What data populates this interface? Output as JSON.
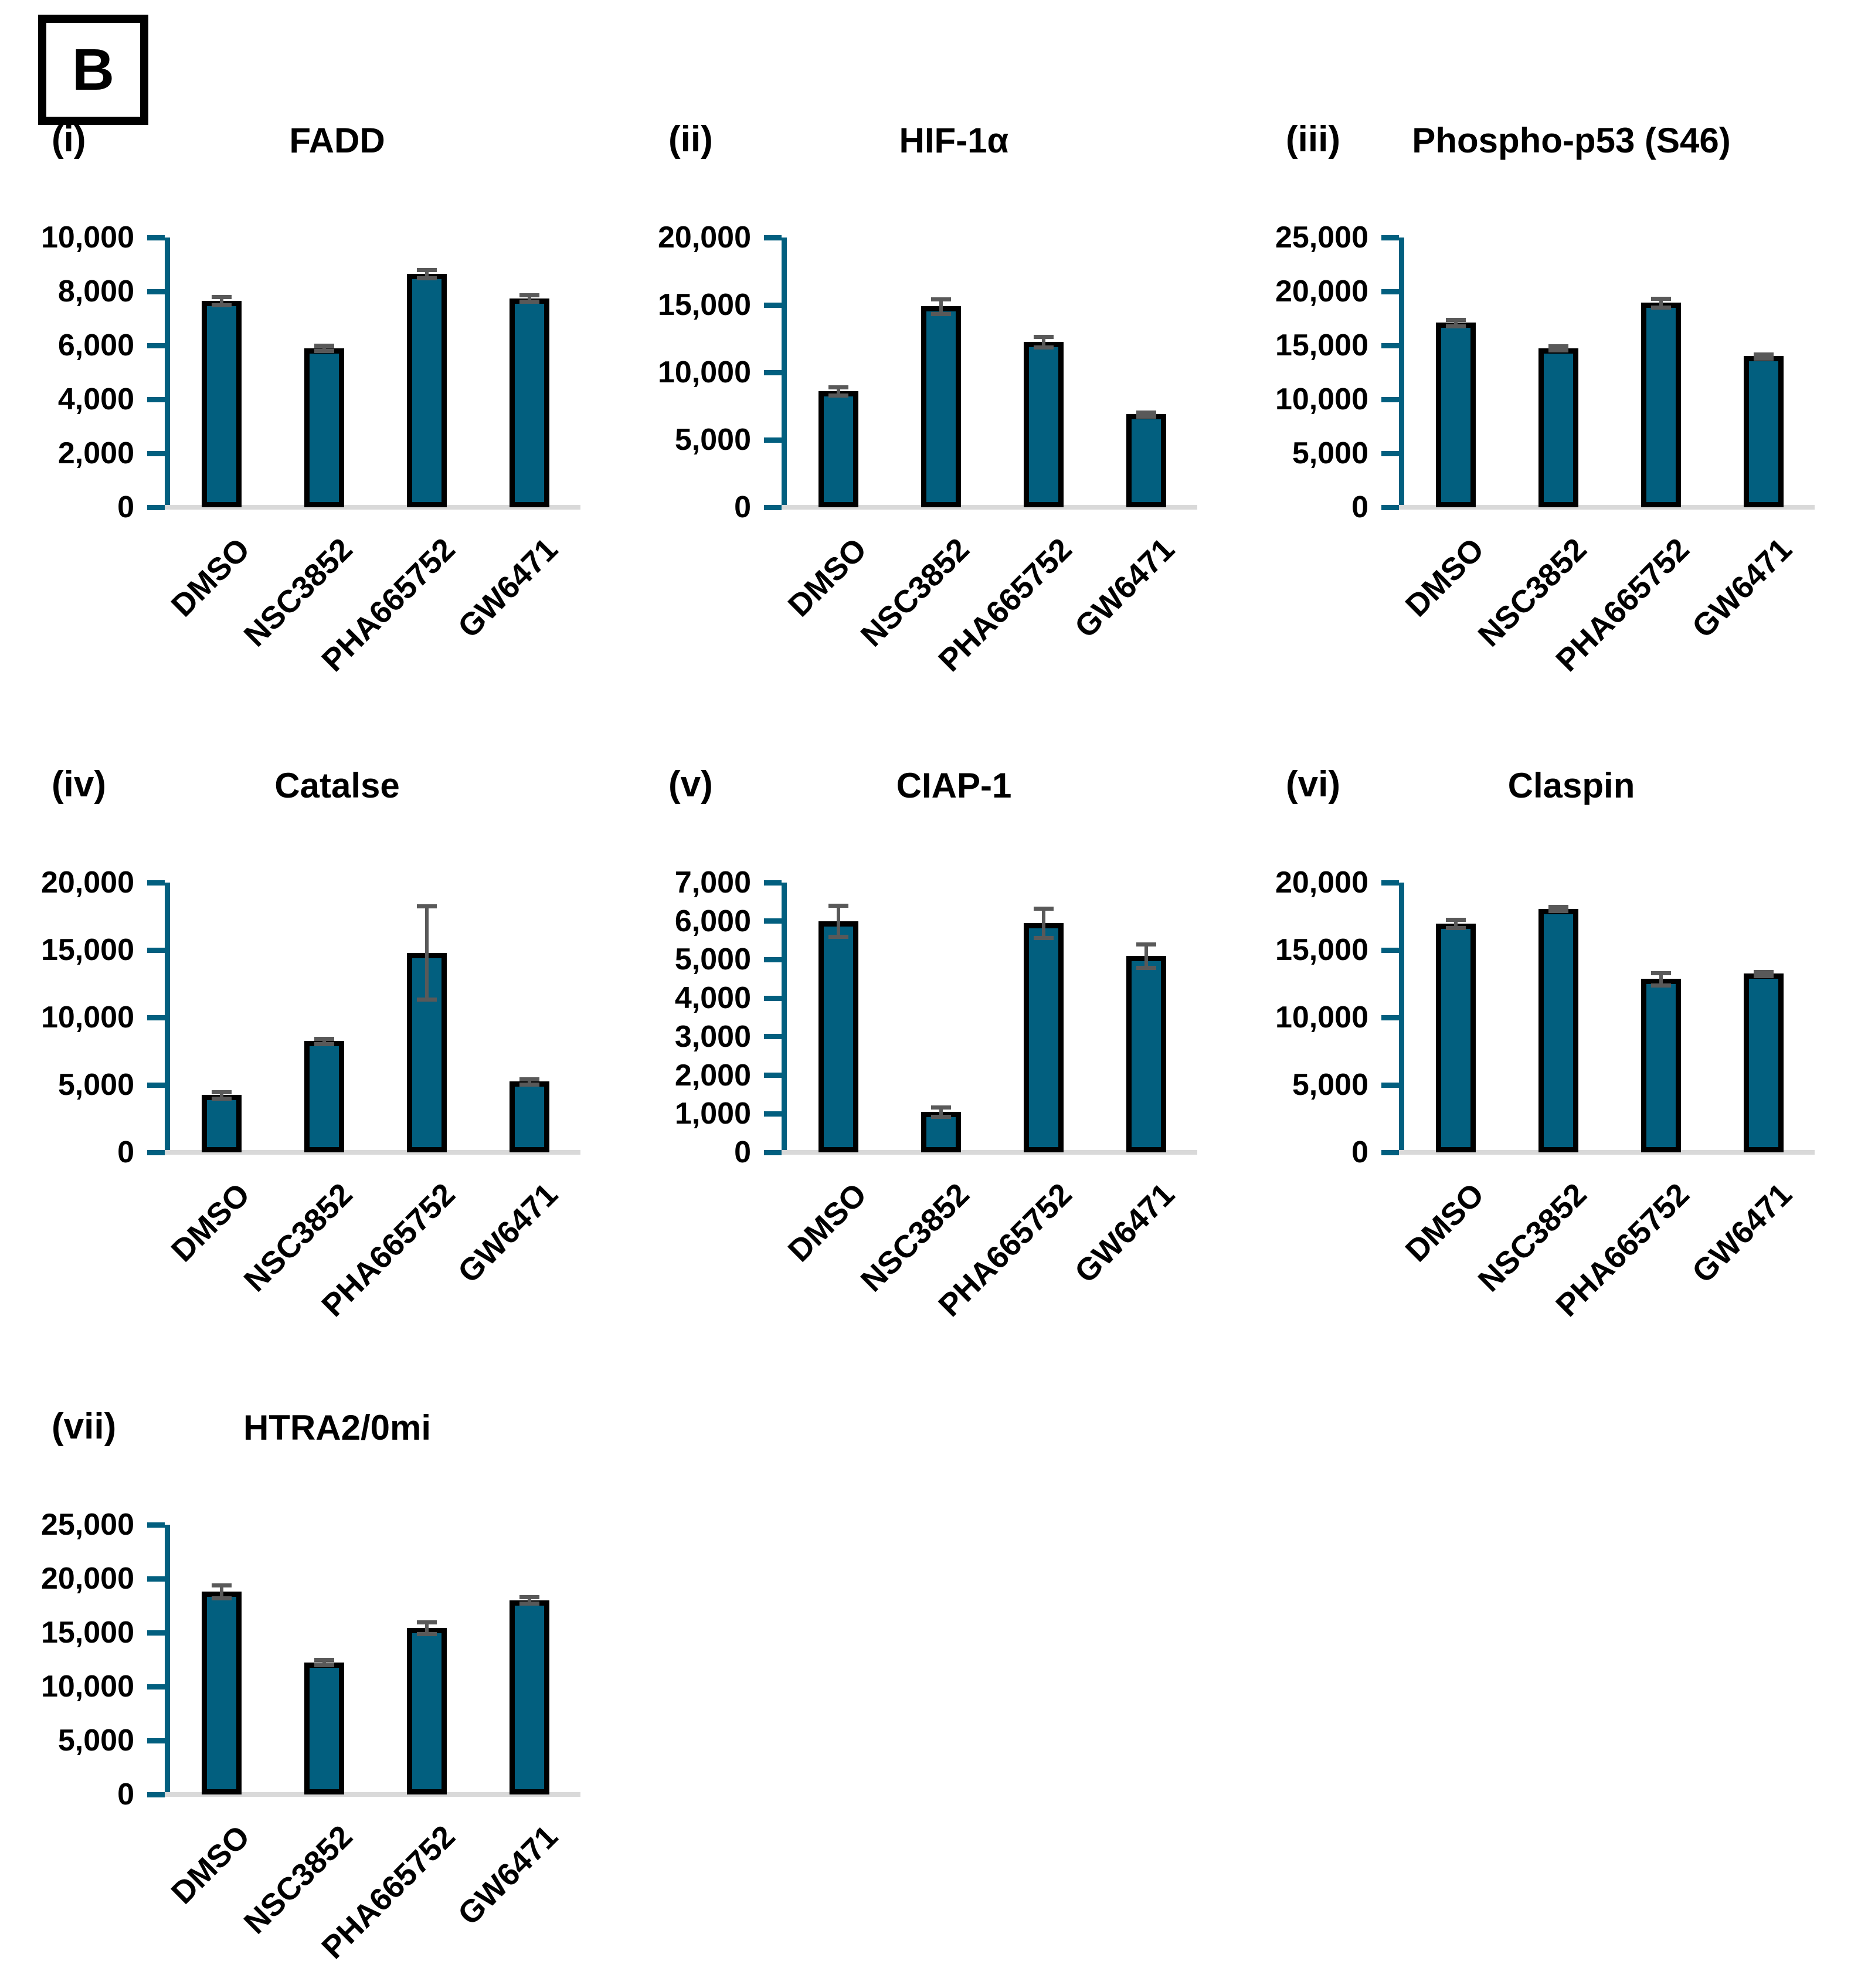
{
  "figure_label": "B",
  "categories": [
    "DMSO",
    "NSC3852",
    "PHA665752",
    "GW6471"
  ],
  "colors": {
    "bar_fill": "#025F7F",
    "bar_border": "#000000",
    "axis": "#025F7F",
    "error_bar": "#595959",
    "baseline": "#D9D9D9",
    "text": "#000000"
  },
  "chart_data": [
    {
      "type": "bar",
      "panel_label": "(i)",
      "title": "FADD",
      "categories": [
        "DMSO",
        "NSC3852",
        "PHA665752",
        "GW6471"
      ],
      "values": [
        7650,
        5900,
        8650,
        7750
      ],
      "errors": [
        150,
        100,
        150,
        120
      ],
      "ylim": [
        0,
        10000
      ],
      "ytick_step": 2000,
      "ytick_labels": [
        "0",
        "2,000",
        "4,000",
        "6,000",
        "8,000",
        "10,000"
      ],
      "grid": false,
      "legend": false
    },
    {
      "type": "bar",
      "panel_label": "(ii)",
      "title": "HIF-1α",
      "categories": [
        "DMSO",
        "NSC3852",
        "PHA665752",
        "GW6471"
      ],
      "values": [
        8600,
        14900,
        12250,
        6900
      ],
      "errors": [
        300,
        550,
        400,
        150
      ],
      "ylim": [
        0,
        20000
      ],
      "ytick_step": 5000,
      "ytick_labels": [
        "0",
        "5,000",
        "10,000",
        "15,000",
        "20,000"
      ],
      "grid": false,
      "legend": false
    },
    {
      "type": "bar",
      "panel_label": "(iii)",
      "title": "Phospho-p53 (S46)",
      "categories": [
        "DMSO",
        "NSC3852",
        "PHA665752",
        "GW6471"
      ],
      "values": [
        17100,
        14750,
        18950,
        14000
      ],
      "errors": [
        300,
        200,
        400,
        200
      ],
      "ylim": [
        0,
        25000
      ],
      "ytick_step": 5000,
      "ytick_labels": [
        "0",
        "5,000",
        "10,000",
        "15,000",
        "20,000",
        "25,000"
      ],
      "grid": false,
      "legend": false
    },
    {
      "type": "bar",
      "panel_label": "(iv)",
      "title": "Catalse",
      "categories": [
        "DMSO",
        "NSC3852",
        "PHA665752",
        "GW6471"
      ],
      "values": [
        4250,
        8250,
        14800,
        5250
      ],
      "errors": [
        250,
        200,
        3450,
        200
      ],
      "ylim": [
        0,
        20000
      ],
      "ytick_step": 5000,
      "ytick_labels": [
        "0",
        "5,000",
        "10,000",
        "15,000",
        "20,000"
      ],
      "grid": false,
      "legend": false
    },
    {
      "type": "bar",
      "panel_label": "(v)",
      "title": "CIAP-1",
      "categories": [
        "DMSO",
        "NSC3852",
        "PHA665752",
        "GW6471"
      ],
      "values": [
        6000,
        1050,
        5950,
        5100
      ],
      "errors": [
        400,
        120,
        380,
        300
      ],
      "ylim": [
        0,
        7000
      ],
      "ytick_step": 1000,
      "ytick_labels": [
        "0",
        "1,000",
        "2,000",
        "3,000",
        "4,000",
        "5,000",
        "6,000",
        "7,000"
      ],
      "grid": false,
      "legend": false
    },
    {
      "type": "bar",
      "panel_label": "(vi)",
      "title": "Claspin",
      "categories": [
        "DMSO",
        "NSC3852",
        "PHA665752",
        "GW6471"
      ],
      "values": [
        16950,
        18050,
        12850,
        13250
      ],
      "errors": [
        300,
        150,
        450,
        150
      ],
      "ylim": [
        0,
        20000
      ],
      "ytick_step": 5000,
      "ytick_labels": [
        "0",
        "5,000",
        "10,000",
        "15,000",
        "20,000"
      ],
      "grid": false,
      "legend": false
    },
    {
      "type": "bar",
      "panel_label": "(vii)",
      "title": "HTRA2/0mi",
      "categories": [
        "DMSO",
        "NSC3852",
        "PHA665752",
        "GW6471"
      ],
      "values": [
        18800,
        12250,
        15450,
        18000
      ],
      "errors": [
        600,
        250,
        550,
        300
      ],
      "ylim": [
        0,
        25000
      ],
      "ytick_step": 5000,
      "ytick_labels": [
        "0",
        "5,000",
        "10,000",
        "15,000",
        "20,000",
        "25,000"
      ],
      "grid": false,
      "legend": false
    }
  ]
}
